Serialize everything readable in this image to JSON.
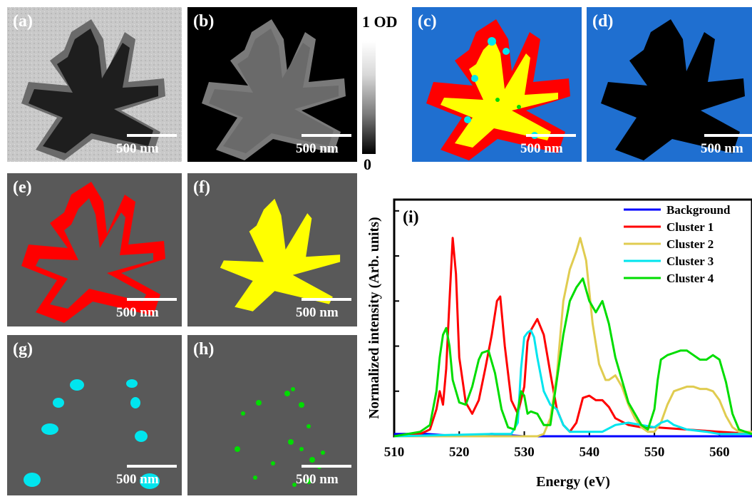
{
  "panels": [
    {
      "label": "(a)",
      "scale": "500 nm"
    },
    {
      "label": "(b)",
      "scale": "500 nm"
    },
    {
      "label": "(c)",
      "scale": "500 nm"
    },
    {
      "label": "(d)",
      "scale": "500 nm"
    },
    {
      "label": "(e)",
      "scale": "500 nm"
    },
    {
      "label": "(f)",
      "scale": "500 nm"
    },
    {
      "label": "(g)",
      "scale": "500 nm"
    },
    {
      "label": "(h)",
      "scale": "500 nm"
    }
  ],
  "colorbar": {
    "top": "1 OD",
    "bottom": "0"
  },
  "colors": {
    "background": "#0000ff",
    "cluster1": "#ff0000",
    "cluster2": "#e0cc50",
    "cluster3": "#00e5ee",
    "cluster4": "#00dd00",
    "map_background": "#1f6fd0",
    "map_grey": "#5a5a5a"
  },
  "chart_data": {
    "type": "line",
    "panel_label": "(i)",
    "xlabel": "Energy (eV)",
    "ylabel": "Normalized intensity (Arb. units)",
    "xlim": [
      510,
      565
    ],
    "ylim": [
      0,
      1.05
    ],
    "x_ticks": [
      510,
      520,
      530,
      540,
      550,
      560
    ],
    "legend_position": "top-right",
    "series": [
      {
        "name": "Background",
        "color": "#0000ff",
        "x": [
          510,
          515,
          520,
          525,
          530,
          535,
          540,
          545,
          550,
          555,
          560,
          565
        ],
        "y": [
          0.01,
          0.01,
          0.0,
          0.01,
          0.0,
          0.0,
          0.0,
          0.0,
          0.0,
          0.0,
          0.0,
          0.0
        ]
      },
      {
        "name": "Cluster 1",
        "color": "#ff0000",
        "x": [
          510,
          514,
          515.5,
          516.5,
          517,
          517.5,
          518,
          518.5,
          519,
          519.5,
          520,
          521,
          522,
          523,
          524,
          525,
          525.8,
          526.3,
          527,
          528,
          529,
          530,
          530.5,
          531,
          532,
          533,
          534,
          535,
          536,
          537,
          538,
          539,
          540,
          541,
          542,
          543,
          544,
          546,
          548,
          550,
          555,
          560,
          565
        ],
        "y": [
          0.0,
          0.01,
          0.03,
          0.12,
          0.2,
          0.14,
          0.3,
          0.6,
          0.88,
          0.72,
          0.35,
          0.15,
          0.1,
          0.16,
          0.3,
          0.45,
          0.6,
          0.62,
          0.4,
          0.16,
          0.1,
          0.22,
          0.42,
          0.47,
          0.52,
          0.45,
          0.28,
          0.12,
          0.05,
          0.02,
          0.06,
          0.17,
          0.18,
          0.16,
          0.16,
          0.13,
          0.08,
          0.05,
          0.04,
          0.04,
          0.03,
          0.02,
          0.01
        ]
      },
      {
        "name": "Cluster 2",
        "color": "#e0cc50",
        "x": [
          510,
          520,
          530,
          531,
          532,
          533,
          534,
          535,
          536,
          537,
          538,
          538.6,
          539.5,
          540.5,
          541.5,
          542.5,
          543,
          544,
          545,
          546,
          547,
          548,
          549,
          550,
          551,
          552,
          553,
          554,
          555,
          556,
          557,
          558,
          559,
          560,
          561,
          562,
          563,
          565
        ],
        "y": [
          0.0,
          0.0,
          0.0,
          0.0,
          0.0,
          0.01,
          0.08,
          0.27,
          0.6,
          0.74,
          0.82,
          0.88,
          0.78,
          0.5,
          0.32,
          0.25,
          0.25,
          0.27,
          0.22,
          0.14,
          0.08,
          0.04,
          0.02,
          0.02,
          0.06,
          0.14,
          0.2,
          0.21,
          0.22,
          0.22,
          0.21,
          0.21,
          0.2,
          0.16,
          0.09,
          0.04,
          0.02,
          0.02
        ]
      },
      {
        "name": "Cluster 3",
        "color": "#00e5ee",
        "x": [
          510,
          525,
          528,
          529,
          529.5,
          530,
          530.5,
          531,
          531.5,
          532,
          533,
          534,
          535,
          536,
          537,
          538,
          540,
          542,
          544,
          546,
          548,
          550,
          551,
          552,
          553,
          555,
          558,
          560,
          562,
          565
        ],
        "y": [
          0.0,
          0.01,
          0.01,
          0.06,
          0.3,
          0.44,
          0.46,
          0.47,
          0.44,
          0.35,
          0.2,
          0.14,
          0.12,
          0.05,
          0.02,
          0.02,
          0.02,
          0.02,
          0.05,
          0.06,
          0.05,
          0.04,
          0.06,
          0.07,
          0.05,
          0.03,
          0.02,
          0.01,
          0.01,
          0.01
        ]
      },
      {
        "name": "Cluster 4",
        "color": "#00dd00",
        "x": [
          510,
          514,
          515.5,
          516.5,
          517,
          517.5,
          518,
          518.5,
          519,
          520,
          521,
          522,
          523,
          523.5,
          524.5,
          525.5,
          526.5,
          527.5,
          528.5,
          529.5,
          530,
          530.5,
          531,
          532,
          533,
          534,
          535,
          536,
          537,
          538,
          539,
          540,
          541,
          542,
          543,
          544,
          545,
          546,
          547,
          548,
          549,
          550,
          550.5,
          551,
          552,
          553,
          554,
          555,
          556,
          557,
          558,
          559,
          560,
          561,
          562,
          563,
          565
        ],
        "y": [
          0.0,
          0.02,
          0.05,
          0.2,
          0.35,
          0.45,
          0.48,
          0.4,
          0.25,
          0.15,
          0.14,
          0.22,
          0.34,
          0.37,
          0.38,
          0.28,
          0.12,
          0.04,
          0.03,
          0.2,
          0.18,
          0.1,
          0.11,
          0.1,
          0.05,
          0.05,
          0.25,
          0.45,
          0.6,
          0.66,
          0.7,
          0.6,
          0.55,
          0.6,
          0.5,
          0.35,
          0.25,
          0.15,
          0.1,
          0.05,
          0.03,
          0.12,
          0.25,
          0.34,
          0.36,
          0.37,
          0.38,
          0.38,
          0.36,
          0.34,
          0.34,
          0.36,
          0.34,
          0.24,
          0.1,
          0.03,
          0.01
        ]
      }
    ]
  }
}
